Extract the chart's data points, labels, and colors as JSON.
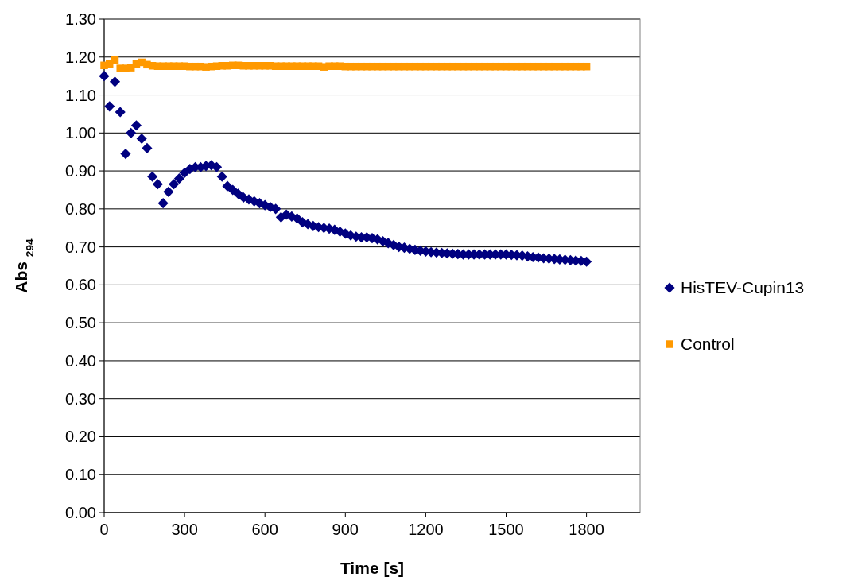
{
  "chart_data": {
    "type": "scatter",
    "xlabel": "Time [s]",
    "ylabel": "Abs $_{294}$",
    "x": [
      0,
      20,
      40,
      60,
      80,
      100,
      120,
      140,
      160,
      180,
      200,
      220,
      240,
      260,
      280,
      300,
      320,
      340,
      360,
      380,
      400,
      420,
      440,
      460,
      480,
      500,
      520,
      540,
      560,
      580,
      600,
      620,
      640,
      660,
      680,
      700,
      720,
      740,
      760,
      780,
      800,
      820,
      840,
      860,
      880,
      900,
      920,
      940,
      960,
      980,
      1000,
      1020,
      1040,
      1060,
      1080,
      1100,
      1120,
      1140,
      1160,
      1180,
      1200,
      1220,
      1240,
      1260,
      1280,
      1300,
      1320,
      1340,
      1360,
      1380,
      1400,
      1420,
      1440,
      1460,
      1480,
      1500,
      1520,
      1540,
      1560,
      1580,
      1600,
      1620,
      1640,
      1660,
      1680,
      1700,
      1720,
      1740,
      1760,
      1780,
      1800
    ],
    "series": [
      {
        "name": "HisTEV-Cupin13",
        "color": "#000080",
        "marker": "diamond",
        "values": [
          1.15,
          1.07,
          1.135,
          1.055,
          0.945,
          1.0,
          1.02,
          0.985,
          0.96,
          0.885,
          0.865,
          0.815,
          0.845,
          0.865,
          0.88,
          0.895,
          0.905,
          0.91,
          0.91,
          0.913,
          0.915,
          0.91,
          0.885,
          0.86,
          0.85,
          0.84,
          0.83,
          0.825,
          0.82,
          0.815,
          0.81,
          0.805,
          0.8,
          0.778,
          0.785,
          0.78,
          0.775,
          0.765,
          0.76,
          0.755,
          0.752,
          0.75,
          0.748,
          0.745,
          0.74,
          0.735,
          0.73,
          0.727,
          0.725,
          0.725,
          0.723,
          0.72,
          0.715,
          0.71,
          0.705,
          0.7,
          0.698,
          0.695,
          0.692,
          0.69,
          0.688,
          0.686,
          0.685,
          0.684,
          0.683,
          0.682,
          0.681,
          0.68,
          0.68,
          0.68,
          0.68,
          0.68,
          0.68,
          0.68,
          0.68,
          0.68,
          0.679,
          0.678,
          0.677,
          0.675,
          0.673,
          0.672,
          0.67,
          0.669,
          0.668,
          0.667,
          0.666,
          0.665,
          0.664,
          0.663,
          0.661
        ]
      },
      {
        "name": "Control",
        "color": "#ff9900",
        "marker": "square",
        "values": [
          1.178,
          1.182,
          1.192,
          1.17,
          1.17,
          1.172,
          1.182,
          1.186,
          1.18,
          1.177,
          1.176,
          1.176,
          1.176,
          1.176,
          1.176,
          1.176,
          1.175,
          1.175,
          1.175,
          1.174,
          1.175,
          1.176,
          1.177,
          1.177,
          1.178,
          1.178,
          1.177,
          1.177,
          1.177,
          1.177,
          1.177,
          1.177,
          1.176,
          1.176,
          1.176,
          1.176,
          1.176,
          1.176,
          1.176,
          1.176,
          1.176,
          1.174,
          1.176,
          1.176,
          1.176,
          1.175,
          1.175,
          1.175,
          1.175,
          1.175,
          1.175,
          1.175,
          1.175,
          1.175,
          1.175,
          1.175,
          1.175,
          1.175,
          1.175,
          1.175,
          1.175,
          1.175,
          1.175,
          1.175,
          1.175,
          1.175,
          1.175,
          1.175,
          1.175,
          1.175,
          1.175,
          1.175,
          1.175,
          1.175,
          1.175,
          1.175,
          1.175,
          1.175,
          1.175,
          1.175,
          1.175,
          1.175,
          1.175,
          1.175,
          1.175,
          1.175,
          1.175,
          1.175,
          1.175,
          1.175,
          1.175
        ]
      }
    ],
    "xlim": [
      0,
      2000
    ],
    "xticks": [
      0,
      300,
      600,
      900,
      1200,
      1500,
      1800
    ],
    "ylim": [
      0,
      1.3
    ],
    "yticks": [
      {
        "value": 0,
        "label": "0.00"
      },
      {
        "value": 0.1,
        "label": "0.10"
      },
      {
        "value": 0.2,
        "label": "0.20"
      },
      {
        "value": 0.3,
        "label": "0.30"
      },
      {
        "value": 0.4,
        "label": "0.40"
      },
      {
        "value": 0.5,
        "label": "0.50"
      },
      {
        "value": 0.6,
        "label": "0.60"
      },
      {
        "value": 0.7,
        "label": "0.70"
      },
      {
        "value": 0.8,
        "label": "0.80"
      },
      {
        "value": 0.9,
        "label": "0.90"
      },
      {
        "value": 1.0,
        "label": "1.00"
      },
      {
        "value": 1.1,
        "label": "1.10"
      },
      {
        "value": 1.2,
        "label": "1.20"
      },
      {
        "value": 1.3,
        "label": "1.30"
      }
    ],
    "grid": "y",
    "legend": "right"
  }
}
